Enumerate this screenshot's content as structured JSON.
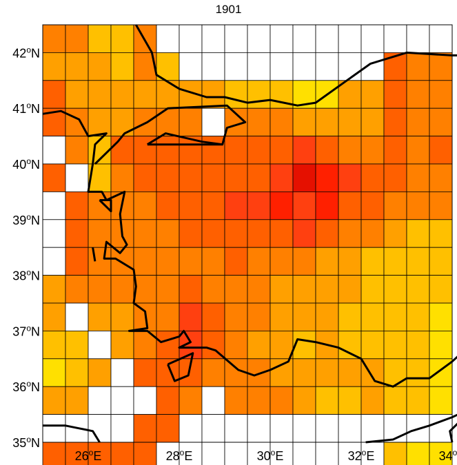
{
  "title": "1901",
  "map": {
    "lon_range": [
      25,
      34
    ],
    "lat_range": [
      35,
      42.5
    ],
    "cell_size_deg": 0.5,
    "x_ticks": [
      {
        "value": 26,
        "num": "26",
        "deg": "o",
        "hemi": "E"
      },
      {
        "value": 28,
        "num": "28",
        "deg": "o",
        "hemi": "E"
      },
      {
        "value": 30,
        "num": "30",
        "deg": "o",
        "hemi": "E"
      },
      {
        "value": 32,
        "num": "32",
        "deg": "o",
        "hemi": "E"
      },
      {
        "value": 34,
        "num": "34",
        "deg": "o",
        "hemi": "E"
      }
    ],
    "y_ticks": [
      {
        "value": 42,
        "num": "42",
        "deg": "o",
        "hemi": "N"
      },
      {
        "value": 41,
        "num": "41",
        "deg": "o",
        "hemi": "N"
      },
      {
        "value": 40,
        "num": "40",
        "deg": "o",
        "hemi": "N"
      },
      {
        "value": 39,
        "num": "39",
        "deg": "o",
        "hemi": "N"
      },
      {
        "value": 38,
        "num": "38",
        "deg": "o",
        "hemi": "N"
      },
      {
        "value": 37,
        "num": "37",
        "deg": "o",
        "hemi": "N"
      },
      {
        "value": 36,
        "num": "36",
        "deg": "o",
        "hemi": "N"
      },
      {
        "value": 35,
        "num": "35",
        "deg": "o",
        "hemi": "N"
      }
    ],
    "colormap": {
      "0": "#ffffff",
      "1": "#e1f920",
      "2": "#ffe000",
      "3": "#ffc000",
      "4": "#ffa000",
      "5": "#ff8000",
      "6": "#ff6000",
      "7": "#ff4010",
      "8": "#ff2000",
      "9": "#e51000",
      "10": "#ccff20",
      "11": "#e8d000",
      "12": "#ff9000"
    },
    "grid_rows_north_to_south": [
      [
        5,
        5,
        3,
        3,
        5,
        0,
        0,
        0,
        0,
        0,
        0,
        0,
        0,
        0,
        0,
        0,
        0,
        0,
        0
      ],
      [
        4,
        4,
        4,
        3,
        5,
        3,
        0,
        0,
        0,
        0,
        0,
        0,
        0,
        0,
        0,
        6,
        5,
        5,
        5
      ],
      [
        6,
        4,
        4,
        4,
        4,
        4,
        4,
        4,
        3,
        3,
        3,
        2,
        2,
        4,
        4,
        6,
        5,
        5,
        6
      ],
      [
        6,
        5,
        4,
        4,
        5,
        5,
        5,
        0,
        5,
        5,
        5,
        4,
        4,
        4,
        4,
        6,
        5,
        5,
        5
      ],
      [
        0,
        5,
        3,
        6,
        6,
        6,
        6,
        6,
        6,
        6,
        6,
        7,
        6,
        5,
        5,
        6,
        5,
        6,
        5
      ],
      [
        6,
        0,
        3,
        5,
        6,
        6,
        6,
        6,
        6,
        6,
        7,
        9,
        8,
        7,
        6,
        6,
        5,
        5,
        5
      ],
      [
        0,
        6,
        5,
        5,
        5,
        6,
        6,
        6,
        7,
        7,
        8,
        7,
        8,
        6,
        6,
        5,
        5,
        5,
        4
      ],
      [
        0,
        6,
        5,
        5,
        5,
        5,
        6,
        6,
        6,
        6,
        6,
        7,
        6,
        5,
        5,
        4,
        3,
        3,
        3
      ],
      [
        0,
        6,
        5,
        5,
        5,
        5,
        5,
        5,
        6,
        5,
        5,
        5,
        4,
        4,
        3,
        3,
        3,
        3,
        3
      ],
      [
        4,
        5,
        5,
        5,
        5,
        5,
        6,
        5,
        5,
        5,
        4,
        4,
        4,
        4,
        3,
        3,
        3,
        3,
        2
      ],
      [
        4,
        0,
        4,
        4,
        5,
        5,
        7,
        6,
        5,
        5,
        4,
        4,
        4,
        3,
        3,
        3,
        3,
        2,
        2
      ],
      [
        3,
        3,
        0,
        4,
        5,
        6,
        7,
        6,
        5,
        4,
        4,
        3,
        4,
        3,
        3,
        3,
        3,
        2,
        1
      ],
      [
        2,
        3,
        4,
        0,
        6,
        6,
        6,
        5,
        5,
        5,
        4,
        4,
        4,
        4,
        4,
        3,
        3,
        2,
        10
      ],
      [
        4,
        4,
        0,
        0,
        0,
        6,
        5,
        0,
        5,
        5,
        5,
        4,
        3,
        3,
        4,
        3,
        3,
        2,
        2
      ],
      [
        0,
        0,
        0,
        0,
        6,
        6,
        0,
        0,
        0,
        0,
        0,
        0,
        0,
        0,
        0,
        0,
        0,
        0,
        2
      ],
      [
        6,
        6,
        6,
        6,
        6,
        0,
        0,
        0,
        0,
        0,
        0,
        0,
        0,
        0,
        0,
        3,
        2,
        2,
        2
      ]
    ],
    "coastlines": [
      [
        [
          25.0,
          40.9
        ],
        [
          25.4,
          40.95
        ],
        [
          25.8,
          40.8
        ],
        [
          26.0,
          40.5
        ],
        [
          26.4,
          40.55
        ],
        [
          26.15,
          40.35
        ],
        [
          26.1,
          40.0
        ],
        [
          26.0,
          39.5
        ],
        [
          26.3,
          39.5
        ],
        [
          26.4,
          39.35
        ],
        [
          26.8,
          39.5
        ],
        [
          26.7,
          39.1
        ],
        [
          26.75,
          38.7
        ],
        [
          26.85,
          38.55
        ],
        [
          26.7,
          38.4
        ],
        [
          26.4,
          38.6
        ],
        [
          26.35,
          38.3
        ],
        [
          26.6,
          38.3
        ],
        [
          27.0,
          38.1
        ],
        [
          27.05,
          37.8
        ],
        [
          27.0,
          37.5
        ],
        [
          27.25,
          37.35
        ],
        [
          27.3,
          37.05
        ],
        [
          26.9,
          37.0
        ],
        [
          27.3,
          37.0
        ],
        [
          27.6,
          36.8
        ],
        [
          28.0,
          36.9
        ],
        [
          28.1,
          37.0
        ],
        [
          28.25,
          36.8
        ],
        [
          28.0,
          36.7
        ],
        [
          28.6,
          36.7
        ],
        [
          28.8,
          36.65
        ],
        [
          29.3,
          36.3
        ],
        [
          29.65,
          36.2
        ],
        [
          30.0,
          36.3
        ],
        [
          30.4,
          36.45
        ],
        [
          30.6,
          36.85
        ],
        [
          31.0,
          36.8
        ],
        [
          31.5,
          36.7
        ],
        [
          32.0,
          36.5
        ],
        [
          32.3,
          36.1
        ],
        [
          32.7,
          36.0
        ],
        [
          33.0,
          36.15
        ],
        [
          33.5,
          36.15
        ],
        [
          34.0,
          36.45
        ],
        [
          34.4,
          36.75
        ]
      ],
      [
        [
          25.0,
          35.3
        ],
        [
          25.5,
          35.3
        ],
        [
          25.8,
          35.25
        ],
        [
          26.1,
          35.2
        ],
        [
          26.25,
          35.0
        ]
      ],
      [
        [
          27.3,
          40.35
        ],
        [
          27.7,
          40.55
        ],
        [
          28.5,
          40.4
        ],
        [
          28.95,
          40.35
        ],
        [
          29.05,
          40.65
        ],
        [
          29.45,
          40.75
        ],
        [
          29.05,
          41.05
        ],
        [
          27.75,
          41.0
        ],
        [
          27.3,
          40.75
        ],
        [
          26.8,
          40.55
        ],
        [
          26.65,
          40.4
        ],
        [
          26.15,
          40.0
        ]
      ],
      [
        [
          27.3,
          40.35
        ],
        [
          28.95,
          40.35
        ]
      ],
      [
        [
          27.05,
          42.5
        ],
        [
          27.4,
          42.0
        ],
        [
          27.5,
          41.6
        ],
        [
          28.0,
          41.35
        ],
        [
          28.6,
          41.2
        ],
        [
          29.0,
          41.2
        ],
        [
          29.5,
          41.1
        ],
        [
          30.0,
          41.15
        ],
        [
          30.6,
          41.05
        ],
        [
          31.0,
          41.1
        ],
        [
          31.6,
          41.45
        ],
        [
          32.2,
          41.8
        ],
        [
          33.0,
          42.0
        ],
        [
          34.0,
          41.95
        ],
        [
          34.4,
          41.95
        ]
      ],
      [
        [
          26.25,
          39.35
        ],
        [
          26.5,
          39.15
        ],
        [
          26.5,
          39.35
        ],
        [
          26.25,
          39.35
        ]
      ],
      [
        [
          26.1,
          38.5
        ],
        [
          26.15,
          38.25
        ]
      ],
      [
        [
          27.75,
          36.4
        ],
        [
          28.3,
          36.6
        ],
        [
          28.2,
          36.2
        ],
        [
          27.9,
          36.1
        ],
        [
          27.75,
          36.4
        ]
      ],
      [
        [
          32.1,
          35.0
        ],
        [
          32.7,
          35.05
        ],
        [
          33.1,
          35.2
        ],
        [
          33.5,
          35.3
        ],
        [
          34.0,
          35.45
        ],
        [
          34.4,
          35.6
        ]
      ],
      [
        [
          34.0,
          35.0
        ],
        [
          33.95,
          35.2
        ],
        [
          34.2,
          35.4
        ],
        [
          34.4,
          35.6
        ]
      ]
    ]
  }
}
